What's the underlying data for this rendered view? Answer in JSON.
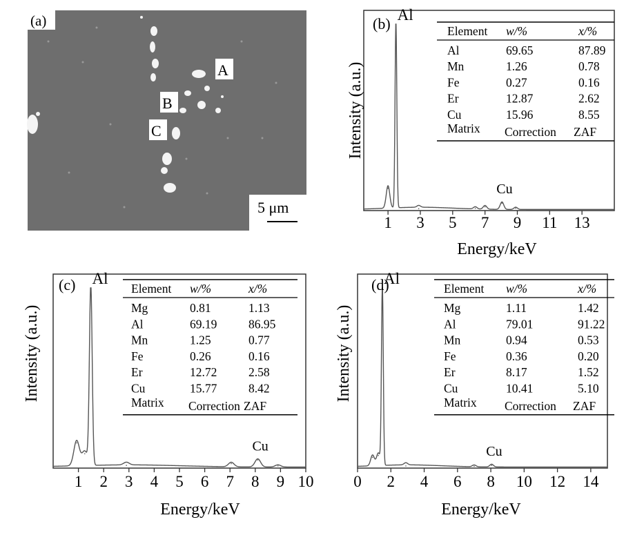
{
  "panel_a": {
    "label": "(a)",
    "scale_bar": "5 μm",
    "markers": [
      {
        "text": "A"
      },
      {
        "text": "B"
      },
      {
        "text": "C"
      }
    ]
  },
  "chart_data": [
    {
      "type": "line",
      "panel": "(b)",
      "xlabel": "Energy/keV",
      "ylabel": "Intensity (a.u.)",
      "xlim": [
        -0.5,
        15
      ],
      "xticks": [
        1,
        3,
        5,
        7,
        9,
        11,
        13
      ],
      "ylim": [
        0,
        1
      ],
      "peaks": [
        {
          "x": 1.0,
          "y": 0.12
        },
        {
          "x": 1.49,
          "y": 1.0,
          "label": "Al"
        },
        {
          "x": 2.9,
          "y": 0.01
        },
        {
          "x": 6.4,
          "y": 0.012
        },
        {
          "x": 7.0,
          "y": 0.02
        },
        {
          "x": 8.05,
          "y": 0.04,
          "label": "Cu"
        },
        {
          "x": 8.9,
          "y": 0.012
        }
      ],
      "table": {
        "headers": [
          "Element",
          "w/%",
          "x/%"
        ],
        "rows": [
          [
            "Al",
            "69.65",
            "87.89"
          ],
          [
            "Mn",
            "1.26",
            "0.78"
          ],
          [
            "Fe",
            "0.27",
            "0.16"
          ],
          [
            "Er",
            "12.87",
            "2.62"
          ],
          [
            "Cu",
            "15.96",
            "8.55"
          ]
        ],
        "footer": [
          "Matrix",
          "Correction",
          "ZAF"
        ]
      }
    },
    {
      "type": "line",
      "panel": "(c)",
      "xlabel": "Energy/keV",
      "ylabel": "Intensity (a.u.)",
      "xlim": [
        0,
        10
      ],
      "xticks": [
        1,
        2,
        3,
        4,
        5,
        6,
        7,
        8,
        9,
        10
      ],
      "ylim": [
        0,
        1
      ],
      "peaks": [
        {
          "x": 0.93,
          "y": 0.14
        },
        {
          "x": 1.25,
          "y": 0.08
        },
        {
          "x": 1.49,
          "y": 1.0,
          "label": "Al"
        },
        {
          "x": 2.9,
          "y": 0.015
        },
        {
          "x": 7.05,
          "y": 0.025
        },
        {
          "x": 8.1,
          "y": 0.045,
          "label": "Cu"
        },
        {
          "x": 8.9,
          "y": 0.012
        }
      ],
      "table": {
        "headers": [
          "Element",
          "w/%",
          "x/%"
        ],
        "rows": [
          [
            "Mg",
            "0.81",
            "1.13"
          ],
          [
            "Al",
            "69.19",
            "86.95"
          ],
          [
            "Mn",
            "1.25",
            "0.77"
          ],
          [
            "Fe",
            "0.26",
            "0.16"
          ],
          [
            "Er",
            "12.72",
            "2.58"
          ],
          [
            "Cu",
            "15.77",
            "8.42"
          ]
        ],
        "footer": [
          "Matrix",
          "Correction",
          "ZAF"
        ]
      }
    },
    {
      "type": "line",
      "panel": "(d)",
      "xlabel": "Energy/keV",
      "ylabel": "Intensity (a.u.)",
      "xlim": [
        0,
        15
      ],
      "xticks": [
        0,
        2,
        4,
        6,
        8,
        10,
        12,
        14
      ],
      "ylim": [
        0,
        1
      ],
      "peaks": [
        {
          "x": 0.9,
          "y": 0.06
        },
        {
          "x": 1.25,
          "y": 0.07
        },
        {
          "x": 1.49,
          "y": 1.0,
          "label": "Al"
        },
        {
          "x": 2.9,
          "y": 0.012
        },
        {
          "x": 7.0,
          "y": 0.01
        },
        {
          "x": 8.05,
          "y": 0.015,
          "label": "Cu"
        }
      ],
      "table": {
        "headers": [
          "Element",
          "w/%",
          "x/%"
        ],
        "rows": [
          [
            "Mg",
            "1.11",
            "1.42"
          ],
          [
            "Al",
            "79.01",
            "91.22"
          ],
          [
            "Mn",
            "0.94",
            "0.53"
          ],
          [
            "Fe",
            "0.36",
            "0.20"
          ],
          [
            "Er",
            "8.17",
            "1.52"
          ],
          [
            "Cu",
            "10.41",
            "5.10"
          ]
        ],
        "footer": [
          "Matrix",
          "Correction",
          "ZAF"
        ]
      }
    }
  ]
}
